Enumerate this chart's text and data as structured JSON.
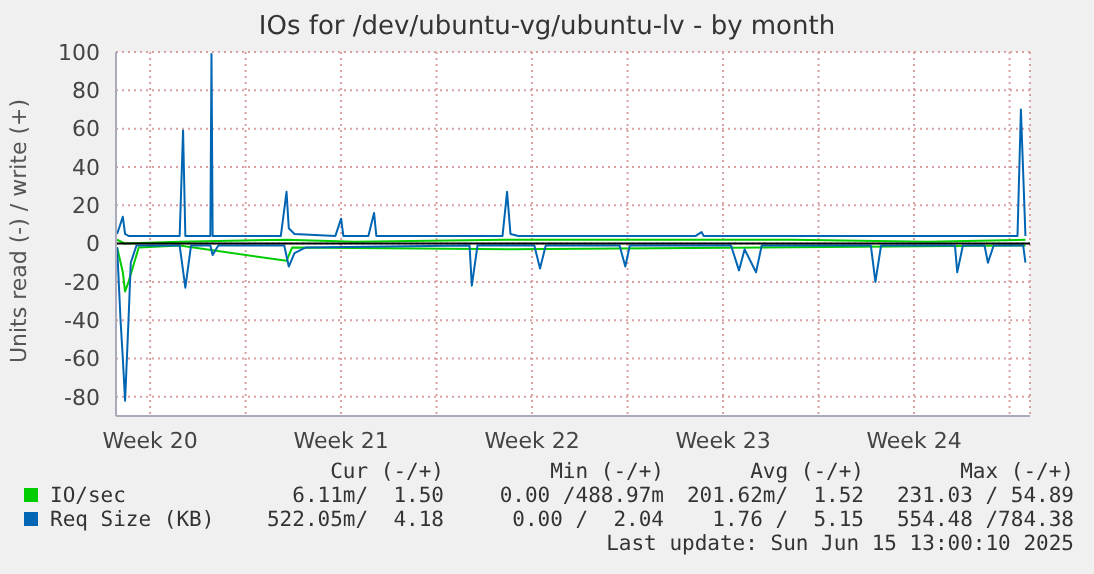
{
  "chart_data": {
    "type": "line",
    "title": "IOs for /dev/ubuntu-vg/ubuntu-lv - by month",
    "ylabel": "Units read (-) / write (+)",
    "xlim": [
      "2025-05-13T06:00",
      "2025-06-15T18:00"
    ],
    "xticks": [
      {
        "value": "2025-05-14T12:00",
        "label": "Week 20"
      },
      {
        "value": "2025-05-18T00:00",
        "label": null
      },
      {
        "value": "2025-05-21T12:00",
        "label": "Week 21"
      },
      {
        "value": "2025-05-25T00:00",
        "label": null
      },
      {
        "value": "2025-05-28T12:00",
        "label": "Week 22"
      },
      {
        "value": "2025-06-01T00:00",
        "label": null
      },
      {
        "value": "2025-06-04T12:00",
        "label": "Week 23"
      },
      {
        "value": "2025-06-08T00:00",
        "label": null
      },
      {
        "value": "2025-06-11T12:00",
        "label": "Week 24"
      },
      {
        "value": "2025-06-15T00:00",
        "label": null
      }
    ],
    "ylim": [
      -90,
      100
    ],
    "yticks": [
      -80,
      -60,
      -40,
      -20,
      0,
      20,
      40,
      60,
      80,
      100
    ],
    "grid": true,
    "legend": "bottom",
    "ref_lines": [
      {
        "axis": "y",
        "value": 0,
        "color": "#000000"
      }
    ],
    "series": [
      {
        "name": "IO/sec",
        "color": "#00cc00",
        "x": [
          "2025-05-13T07:00",
          "2025-05-13T14:00",
          "2025-05-15T14:00",
          "2025-05-19T12:00",
          "2025-05-22T00:00",
          "2025-05-27T12:00",
          "2025-06-02T00:00",
          "2025-06-07T00:00",
          "2025-06-12T00:00",
          "2025-06-15T14:00"
        ],
        "values": [
          2,
          0,
          1,
          2,
          1,
          2,
          2,
          2,
          1,
          2
        ]
      },
      {
        "color": "#00cc00",
        "x": [
          "2025-05-13T07:00",
          "2025-05-13T12:00",
          "2025-05-13T14:00",
          "2025-05-13T17:00",
          "2025-05-13T22:00",
          "2025-05-14T02:00",
          "2025-05-15T14:00",
          "2025-05-19T12:00",
          "2025-05-19T17:00",
          "2025-05-27T17:00",
          "2025-06-15T14:00"
        ],
        "values": [
          -2,
          -15,
          -25,
          -20,
          -10,
          -2,
          -1,
          -9,
          -2,
          -3,
          -1
        ]
      },
      {
        "name": "Req Size (KB)",
        "color": "#0066b3",
        "x": [
          "2025-05-13T07:00",
          "2025-05-13T12:00",
          "2025-05-13T14:00",
          "2025-05-13T17:00",
          "2025-05-13T22:00",
          "2025-05-15T14:00",
          "2025-05-15T17:00",
          "2025-05-15T19:00",
          "2025-05-16T17:00",
          "2025-05-16T18:00",
          "2025-05-16T19:00",
          "2025-05-19T07:00",
          "2025-05-19T12:00",
          "2025-05-19T14:00",
          "2025-05-19T19:00",
          "2025-05-21T07:00",
          "2025-05-21T12:00",
          "2025-05-21T14:00",
          "2025-05-22T12:00",
          "2025-05-22T17:00",
          "2025-05-22T19:00",
          "2025-05-27T10:00",
          "2025-05-27T14:00",
          "2025-05-27T17:00",
          "2025-05-28T00:00",
          "2025-06-03T12:00",
          "2025-06-03T17:00",
          "2025-06-03T19:00",
          "2025-06-15T07:00",
          "2025-06-15T10:00",
          "2025-06-15T14:00"
        ],
        "values": [
          5,
          14,
          5,
          4,
          4,
          4,
          59,
          4,
          4,
          99,
          4,
          4,
          27,
          8,
          5,
          4,
          13,
          4,
          4,
          16,
          4,
          4,
          27,
          5,
          4,
          4,
          6,
          4,
          4,
          70,
          4
        ]
      },
      {
        "color": "#0066b3",
        "x": [
          "2025-05-13T07:00",
          "2025-05-13T10:00",
          "2025-05-13T12:00",
          "2025-05-13T14:00",
          "2025-05-13T17:00",
          "2025-05-13T19:00",
          "2025-05-14T00:00",
          "2025-05-15T14:00",
          "2025-05-15T19:00",
          "2025-05-16T00:00",
          "2025-05-16T17:00",
          "2025-05-16T19:00",
          "2025-05-17T00:00",
          "2025-05-19T10:00",
          "2025-05-19T14:00",
          "2025-05-19T19:00",
          "2025-05-20T05:00",
          "2025-05-26T05:00",
          "2025-05-26T07:00",
          "2025-05-26T12:00",
          "2025-05-28T14:00",
          "2025-05-28T19:00",
          "2025-05-29T00:00",
          "2025-05-31T17:00",
          "2025-05-31T22:00",
          "2025-06-01T02:00",
          "2025-06-04T19:00",
          "2025-06-05T02:00",
          "2025-06-05T07:00",
          "2025-06-05T17:00",
          "2025-06-05T22:00",
          "2025-06-09T22:00",
          "2025-06-10T02:00",
          "2025-06-10T07:00",
          "2025-06-13T00:00",
          "2025-06-13T02:00",
          "2025-06-13T07:00",
          "2025-06-14T02:00",
          "2025-06-14T05:00",
          "2025-06-14T10:00",
          "2025-06-15T12:00",
          "2025-06-15T14:00"
        ],
        "values": [
          -2,
          -40,
          -60,
          -82,
          -40,
          -10,
          -1,
          -1,
          -23,
          -1,
          -1,
          -6,
          -1,
          -1,
          -12,
          -5,
          -2,
          -1,
          -22,
          -1,
          -1,
          -13,
          -1,
          -1,
          -12,
          -1,
          -1,
          -14,
          -3,
          -15,
          -1,
          -1,
          -20,
          -1,
          -1,
          -15,
          -1,
          -1,
          -10,
          -1,
          -1,
          -10
        ]
      }
    ],
    "annotations": [
      "Cur (-/+)",
      "Min (-/+)",
      "Avg (-/+)",
      "Max (-/+)",
      "6.11m/  1.50",
      "0.00 /488.97m",
      "201.62m/  1.52",
      "231.03 / 54.89",
      "522.05m/  4.18",
      "0.00 /  2.04",
      "1.76 /  5.15",
      "554.48 /784.38",
      "Last update: Sun Jun 15 13:00:10 2025"
    ]
  }
}
